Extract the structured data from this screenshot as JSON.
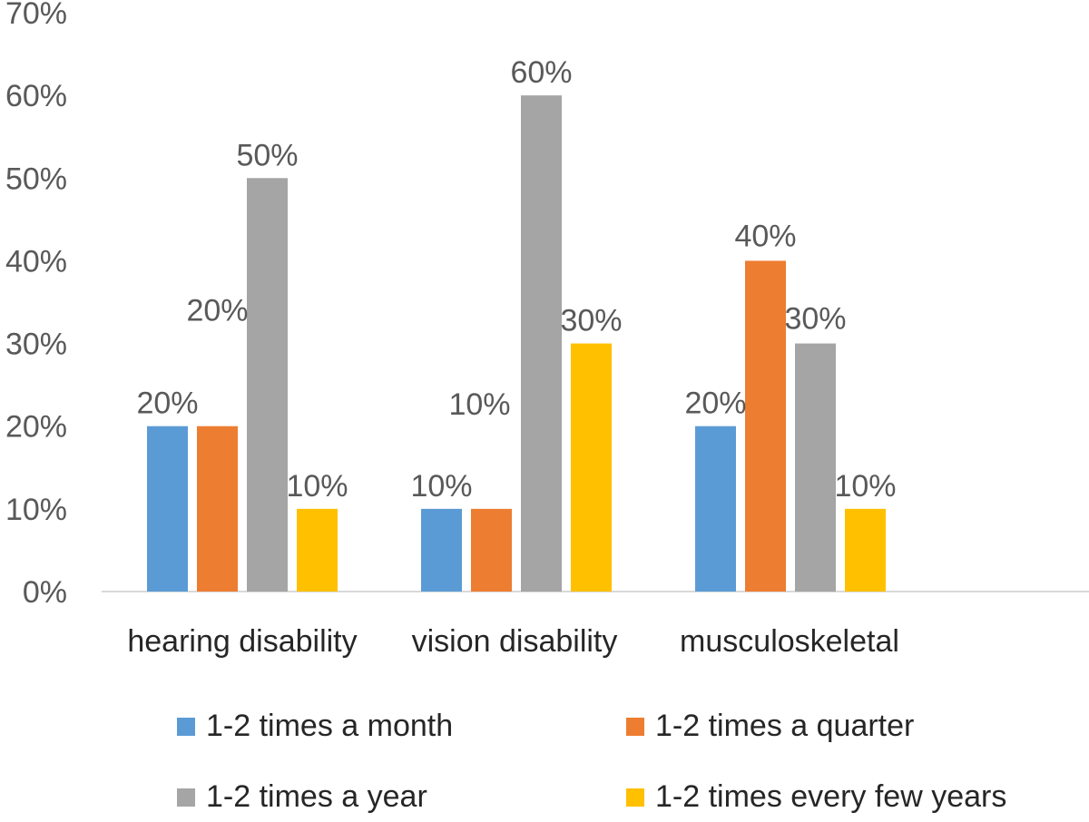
{
  "chart_data": {
    "type": "bar",
    "title": "",
    "xlabel": "",
    "ylabel": "",
    "ylim": [
      0,
      70
    ],
    "yticks": [
      "0%",
      "10%",
      "20%",
      "30%",
      "40%",
      "50%",
      "60%",
      "70%"
    ],
    "grid": false,
    "legend_position": "bottom",
    "categories": [
      "hearing disability",
      "vision disability",
      "musculoskeletal"
    ],
    "series": [
      {
        "name": "1-2 times a month",
        "color": "#5B9BD5",
        "values": [
          20,
          10,
          20
        ],
        "labels": [
          "20%",
          "10%",
          "20%"
        ]
      },
      {
        "name": "1-2 times a quarter",
        "color": "#ED7D31",
        "values": [
          20,
          10,
          40
        ],
        "labels": [
          "20%",
          "10%",
          "40%"
        ]
      },
      {
        "name": "1-2 times a year",
        "color": "#A5A5A5",
        "values": [
          50,
          60,
          30
        ],
        "labels": [
          "50%",
          "60%",
          "30%"
        ]
      },
      {
        "name": "1-2 times every few years",
        "color": "#FFC000",
        "values": [
          10,
          30,
          10
        ],
        "labels": [
          "10%",
          "30%",
          "10%"
        ]
      }
    ]
  }
}
